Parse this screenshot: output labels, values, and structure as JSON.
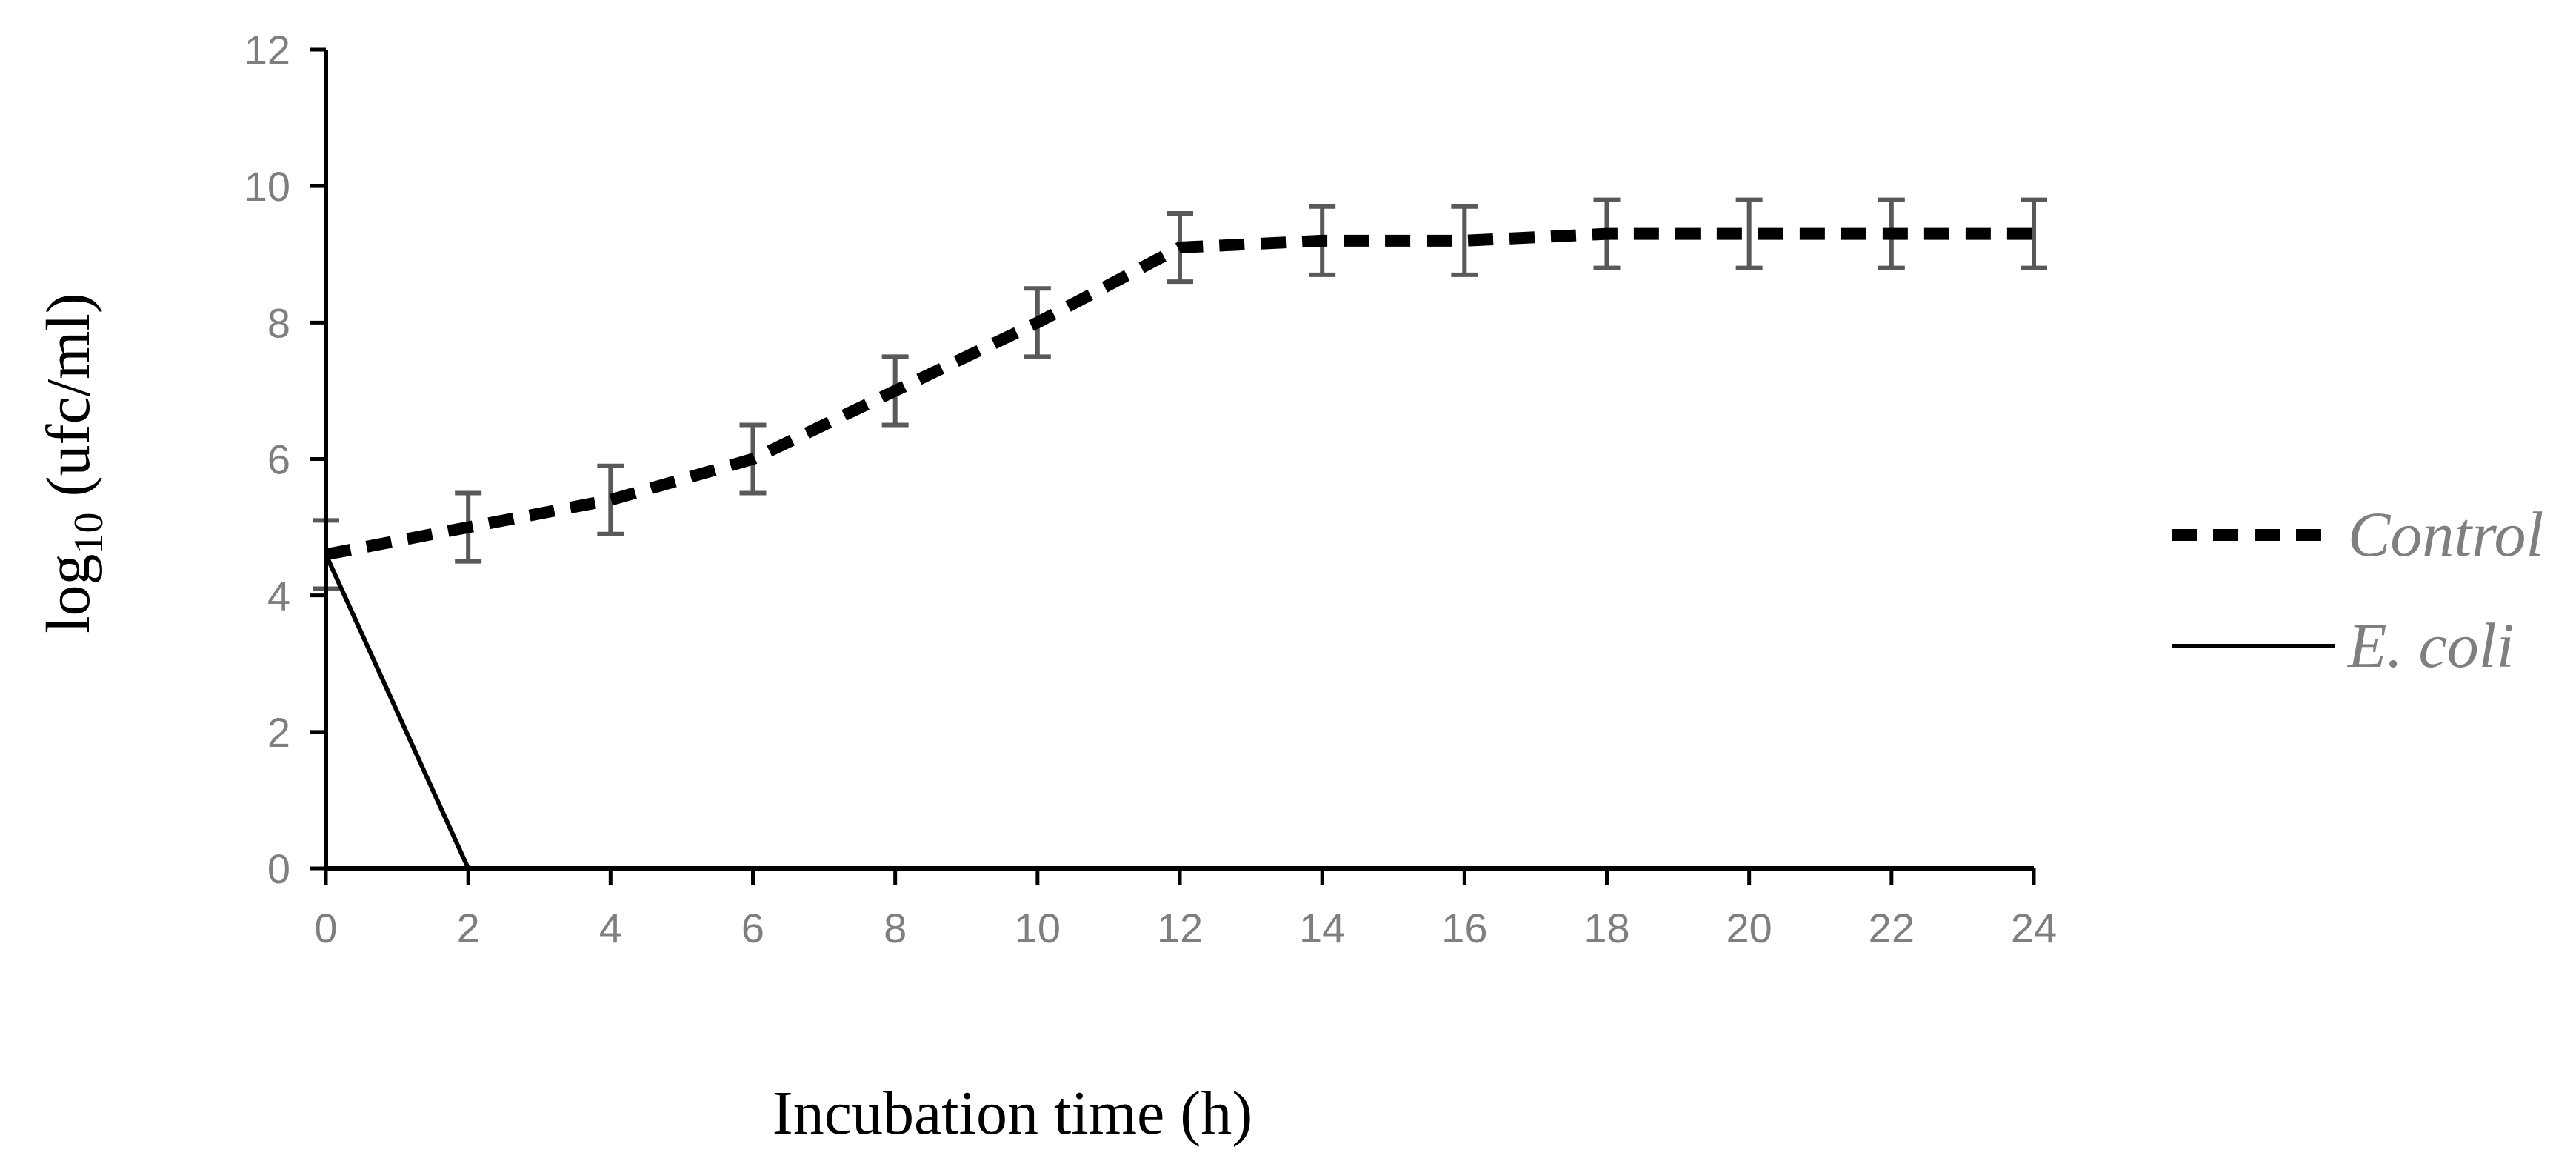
{
  "chart_data": {
    "type": "line",
    "xlabel": "Incubation time (h)",
    "ylabel": {
      "prefix": "log",
      "subscript": "10",
      "suffix": " (ufc/ml)"
    },
    "xlim": [
      0,
      24
    ],
    "ylim": [
      0,
      12
    ],
    "xticks": [
      0,
      2,
      4,
      6,
      8,
      10,
      12,
      14,
      16,
      18,
      20,
      22,
      24
    ],
    "yticks": [
      0,
      2,
      4,
      6,
      8,
      10,
      12
    ],
    "grid": false,
    "legend_position": "right",
    "series": [
      {
        "name": "Control",
        "style": "dashed",
        "color": "#000000",
        "x": [
          0,
          2,
          4,
          6,
          8,
          10,
          12,
          14,
          16,
          18,
          20,
          22,
          24
        ],
        "y": [
          4.6,
          5.0,
          5.4,
          6.0,
          7.0,
          8.0,
          9.1,
          9.2,
          9.2,
          9.3,
          9.3,
          9.3,
          9.3
        ],
        "error": [
          0.5,
          0.5,
          0.5,
          0.5,
          0.5,
          0.5,
          0.5,
          0.5,
          0.5,
          0.5,
          0.5,
          0.5,
          0.5
        ]
      },
      {
        "name": "E. coli",
        "style": "solid",
        "color": "#000000",
        "x": [
          0,
          2
        ],
        "y": [
          4.6,
          0
        ]
      }
    ],
    "colors": {
      "axis": "#000000",
      "tick_label": "#7f7f7f",
      "error_bar": "#595959"
    }
  }
}
